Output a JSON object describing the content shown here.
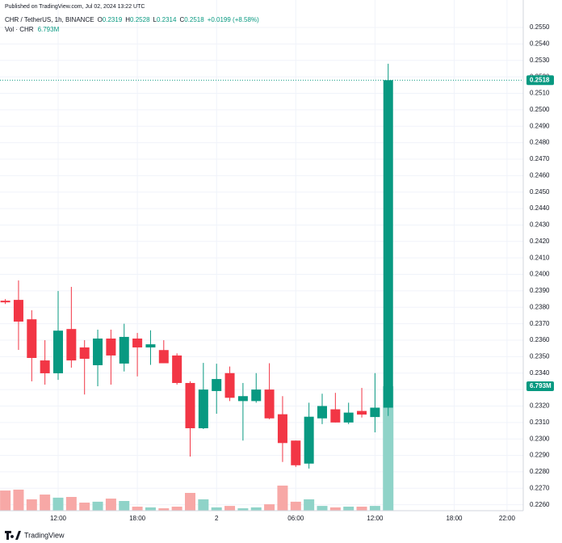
{
  "published": "Published on TradingView.com, Jul 02, 2024 13:22 UTC",
  "legend_keys": [
    "O",
    "H",
    "L",
    "C"
  ],
  "change": "+0.0199 (+8.58%)",
  "footer": "TradingView",
  "chart_data": {
    "type": "candlestick",
    "title": "CHR / TetherUS, 1h, BINANCE",
    "categories": [
      null,
      null,
      null,
      null,
      "12:00",
      null,
      null,
      null,
      null,
      null,
      "18:00",
      null,
      null,
      null,
      null,
      null,
      "2",
      null,
      null,
      null,
      null,
      null,
      "06:00",
      null,
      null,
      null,
      null,
      null,
      "12:00",
      null,
      null,
      null,
      null,
      null,
      "18:00",
      null,
      null,
      null,
      "22:00",
      null
    ],
    "open": [
      0.2384,
      0.23845,
      0.23727,
      0.23477,
      0.23399,
      0.23668,
      0.23556,
      0.23448,
      0.2361,
      0.23458,
      0.2361,
      0.23556,
      0.2354,
      0.23507,
      0.2334,
      0.23065,
      0.23291,
      0.234,
      0.2323,
      0.2323,
      0.233,
      0.2315,
      0.2299,
      0.2285,
      0.23125,
      0.2318,
      0.231,
      0.2317,
      0.23133,
      0.2319,
      null,
      null,
      null,
      null,
      null,
      null,
      null,
      null,
      null,
      null
    ],
    "high": [
      0.2385,
      0.23963,
      0.23782,
      0.236,
      0.23899,
      0.23924,
      0.236,
      0.23664,
      0.23664,
      0.237,
      0.23644,
      0.2366,
      0.236,
      0.2352,
      0.2335,
      0.23462,
      0.23457,
      0.2344,
      0.2334,
      0.234,
      0.2346,
      0.2326,
      0.2299,
      0.2322,
      0.23275,
      0.2328,
      0.2322,
      0.2331,
      0.234,
      0.2528,
      null,
      null,
      null,
      null,
      null,
      null,
      null,
      null,
      null,
      null
    ],
    "low": [
      0.2382,
      0.23541,
      0.2335,
      0.2333,
      0.23359,
      0.23433,
      0.2327,
      0.2332,
      0.2333,
      0.2341,
      0.2338,
      0.2345,
      0.2346,
      0.2333,
      0.22893,
      0.2306,
      0.23153,
      0.2323,
      0.2299,
      0.2322,
      0.2312,
      0.2286,
      0.2283,
      0.2282,
      0.2309,
      0.231,
      0.2309,
      0.2313,
      0.2304,
      0.2314,
      null,
      null,
      null,
      null,
      null,
      null,
      null,
      null,
      null,
      null
    ],
    "close": [
      0.2383,
      0.23713,
      0.23492,
      0.23399,
      0.23658,
      0.23477,
      0.23487,
      0.2361,
      0.23507,
      0.2362,
      0.23556,
      0.23575,
      0.2346,
      0.2334,
      0.23065,
      0.233,
      0.23364,
      0.2325,
      0.2326,
      0.233,
      0.23125,
      0.22975,
      0.2284,
      0.23135,
      0.232,
      0.231,
      0.2316,
      0.23148,
      0.2319,
      0.2518,
      null,
      null,
      null,
      null,
      null,
      null,
      null,
      null,
      null,
      null
    ],
    "up_color": "#089981",
    "down_color": "#f23645",
    "volume": {
      "name": "Vol · CHR",
      "values": [
        1.1,
        1.15,
        0.62,
        0.88,
        0.71,
        0.75,
        0.44,
        0.49,
        0.66,
        0.53,
        0.22,
        0.18,
        0.13,
        0.22,
        0.97,
        0.62,
        0.18,
        0.26,
        0.13,
        0.18,
        0.35,
        1.37,
        0.49,
        0.62,
        0.26,
        0.18,
        0.22,
        0.22,
        0.26,
        6.793,
        null,
        null,
        null,
        null,
        null,
        null,
        null,
        null,
        null,
        null
      ],
      "value_labels": [
        null,
        null,
        null,
        null,
        null,
        null,
        null,
        null,
        null,
        null,
        null,
        null,
        null,
        null,
        null,
        null,
        null,
        null,
        null,
        null,
        null,
        null,
        null,
        null,
        null,
        null,
        null,
        null,
        null,
        "6.793M",
        null,
        null,
        null,
        null,
        null,
        null,
        null,
        null,
        null,
        null
      ],
      "up_color": "#8fd3c8",
      "down_color": "#f7a8a6",
      "axis": "y2"
    },
    "ylim": [
      0.22564,
      0.25569
    ],
    "yticks": [
      {
        "value": 0.226,
        "label": "0.2260"
      },
      {
        "value": 0.227,
        "label": "0.2270"
      },
      {
        "value": 0.228,
        "label": "0.2280"
      },
      {
        "value": 0.229,
        "label": "0.2290"
      },
      {
        "value": 0.23,
        "label": "0.2300"
      },
      {
        "value": 0.231,
        "label": "0.2310"
      },
      {
        "value": 0.232,
        "label": "0.2320"
      },
      {
        "value": 0.233,
        "label": "0.2330"
      },
      {
        "value": 0.234,
        "label": "0.2340"
      },
      {
        "value": 0.235,
        "label": "0.2350"
      },
      {
        "value": 0.236,
        "label": "0.2360"
      },
      {
        "value": 0.237,
        "label": "0.2370"
      },
      {
        "value": 0.238,
        "label": "0.2380"
      },
      {
        "value": 0.239,
        "label": "0.2390"
      },
      {
        "value": 0.24,
        "label": "0.2400"
      },
      {
        "value": 0.241,
        "label": "0.2410"
      },
      {
        "value": 0.242,
        "label": "0.2420"
      },
      {
        "value": 0.243,
        "label": "0.2430"
      },
      {
        "value": 0.244,
        "label": "0.2440"
      },
      {
        "value": 0.245,
        "label": "0.2450"
      },
      {
        "value": 0.246,
        "label": "0.2460"
      },
      {
        "value": 0.247,
        "label": "0.2470"
      },
      {
        "value": 0.248,
        "label": "0.2480"
      },
      {
        "value": 0.249,
        "label": "0.2490"
      },
      {
        "value": 0.25,
        "label": "0.2500"
      },
      {
        "value": 0.251,
        "label": "0.2510"
      },
      {
        "value": 0.252,
        "label": "0.2520"
      },
      {
        "value": 0.253,
        "label": "0.2530"
      },
      {
        "value": 0.254,
        "label": "0.2540"
      },
      {
        "value": 0.255,
        "label": "0.2550"
      }
    ],
    "y2lim": [
      0,
      27
    ],
    "grid": true
  }
}
